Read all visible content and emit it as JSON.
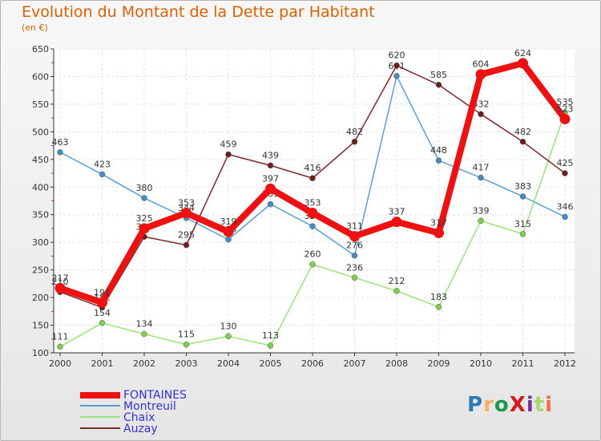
{
  "title": "Evolution du Montant de la Dette par Habitant",
  "unit": "(en €)",
  "logo": {
    "text": "ProXiti",
    "colors": [
      "#2c7bb6",
      "#fdae61",
      "#1a9850",
      "#d7191c",
      "#7b3294",
      "#a6d96a",
      "#f46d43"
    ]
  },
  "chart_data": {
    "type": "line",
    "title": "Evolution du Montant de la Dette par Habitant",
    "ylabel": "(en €)",
    "xlabel": "",
    "ylim": [
      100,
      650
    ],
    "yticks": [
      100,
      150,
      200,
      250,
      300,
      350,
      400,
      450,
      500,
      550,
      600,
      650
    ],
    "categories": [
      "2000",
      "2001",
      "2002",
      "2003",
      "2004",
      "2005",
      "2006",
      "2007",
      "2008",
      "2009",
      "2010",
      "2011",
      "2012"
    ],
    "grid": true,
    "legend_position": "bottom-left",
    "series": [
      {
        "name": "Montreuil",
        "color": "#5a9fd4",
        "marker": "#4a8ac0",
        "values": [
          463,
          423,
          380,
          344,
          305,
          369,
          329,
          276,
          601,
          448,
          417,
          383,
          346
        ]
      },
      {
        "name": "Chaix",
        "color": "#9be27a",
        "marker": "#7ccf4f",
        "values": [
          111,
          154,
          134,
          115,
          130,
          113,
          260,
          236,
          212,
          183,
          339,
          315,
          535
        ]
      },
      {
        "name": "Auzay",
        "color": "#7a2a2a",
        "marker": "#6a1f1f",
        "values": [
          210,
          182,
          310,
          295,
          459,
          439,
          416,
          482,
          620,
          585,
          532,
          482,
          425
        ]
      },
      {
        "name": "FONTAINES",
        "color": "#ee1111",
        "marker": "#ee1111",
        "values": [
          217,
          191,
          325,
          353,
          319,
          397,
          353,
          311,
          337,
          317,
          604,
          624,
          523
        ]
      }
    ],
    "legend_order": [
      "FONTAINES",
      "Montreuil",
      "Chaix",
      "Auzay"
    ]
  }
}
